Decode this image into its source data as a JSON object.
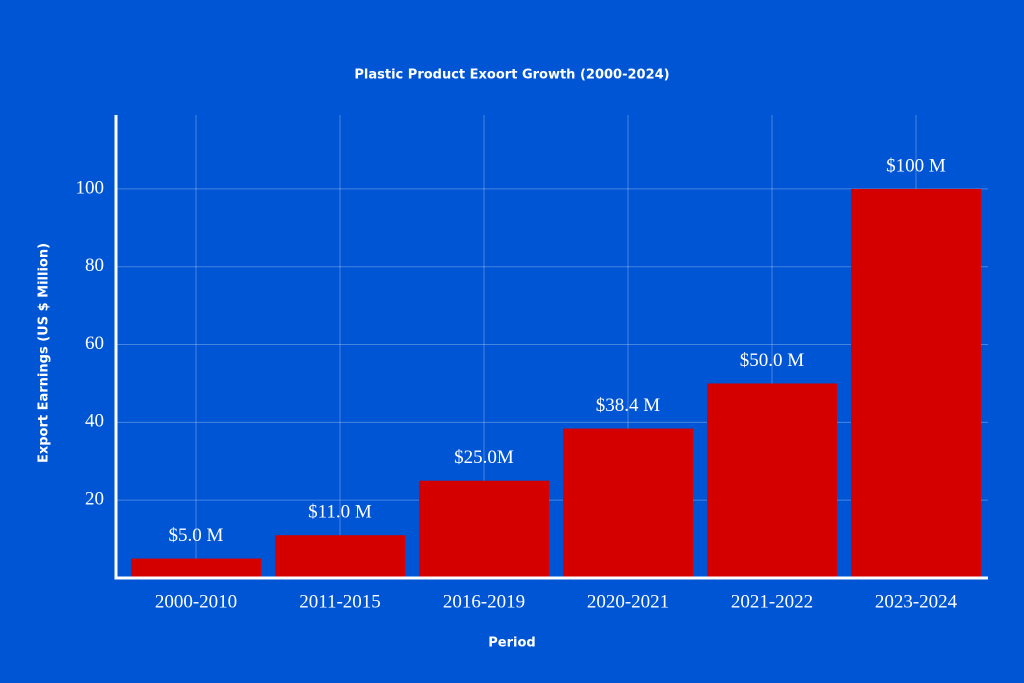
{
  "chart_data": {
    "type": "bar",
    "title": "Plastic Product Exoort Growth (2000-2024)",
    "xlabel": "Period",
    "ylabel": "Export Earnings (US $ Million)",
    "categories": [
      "2000-2010",
      "2011-2015",
      "2016-2019",
      "2020-2021",
      "2021-2022",
      "2023-2024"
    ],
    "values": [
      5,
      11,
      25,
      38.4,
      50,
      100
    ],
    "value_labels": [
      "$5.0 M",
      "$11.0 M",
      "$25.0M",
      "$38.4 M",
      "$50.0 M",
      "$100 M"
    ],
    "color": "#d40000",
    "ylim": [
      0,
      119
    ],
    "yticks": [
      20,
      40,
      60,
      80,
      100
    ],
    "grid": true
  }
}
